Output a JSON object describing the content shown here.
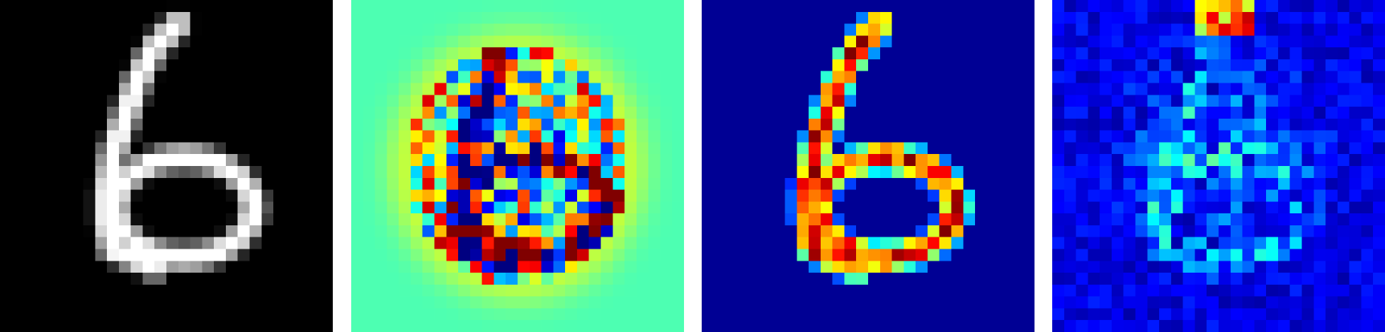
{
  "figure": {
    "panels": [
      {
        "name": "original-digit",
        "colormap": "gray",
        "background": "#000000"
      },
      {
        "name": "attribution-map",
        "colormap": "jet",
        "background": "#6cff8e"
      },
      {
        "name": "saliency-map-a",
        "colormap": "jet",
        "background": "#00008f"
      },
      {
        "name": "saliency-map-b",
        "colormap": "jet",
        "background": "#000096"
      }
    ]
  }
}
